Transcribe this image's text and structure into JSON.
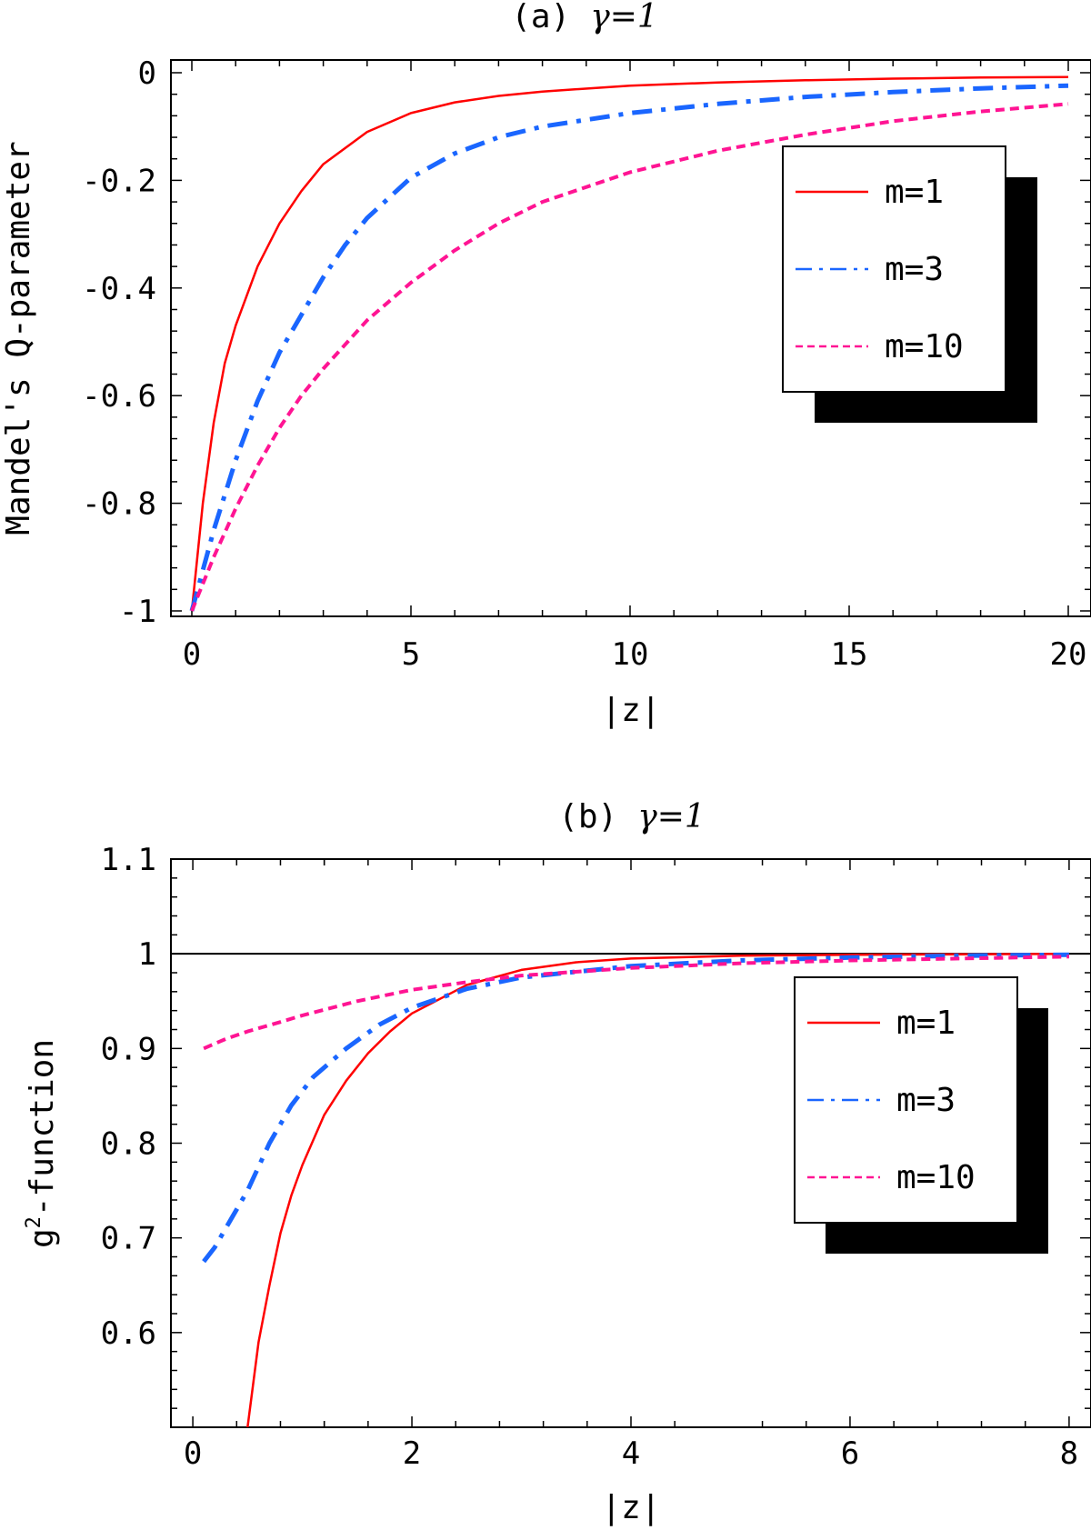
{
  "chart_data": [
    {
      "type": "line",
      "title": "(a)  γ=1",
      "title_prefix": "(a)",
      "title_param": "γ=1",
      "xlabel": "|z|",
      "ylabel": "Mandel's Q-parameter",
      "xlim": [
        0,
        20
      ],
      "ylim": [
        -1,
        0
      ],
      "xticks": [
        0,
        5,
        10,
        15,
        20
      ],
      "xtick_labels": [
        "0",
        "5",
        "10",
        "15",
        "20"
      ],
      "yticks": [
        0,
        -0.2,
        -0.4,
        -0.6,
        -0.8,
        -1
      ],
      "ytick_labels": [
        "0",
        "-0.2",
        "-0.4",
        "-0.6",
        "-0.8",
        "-1"
      ],
      "legend_position": "upper-right",
      "series": [
        {
          "name": "m=1",
          "color": "#ff0000",
          "style": "solid",
          "x": [
            0,
            0.25,
            0.5,
            0.75,
            1,
            1.5,
            2,
            2.5,
            3,
            4,
            5,
            6,
            7,
            8,
            10,
            12,
            14,
            16,
            18,
            20
          ],
          "y": [
            -1,
            -0.8,
            -0.65,
            -0.54,
            -0.47,
            -0.36,
            -0.28,
            -0.22,
            -0.17,
            -0.11,
            -0.075,
            -0.055,
            -0.043,
            -0.035,
            -0.024,
            -0.018,
            -0.014,
            -0.011,
            -0.009,
            -0.008
          ]
        },
        {
          "name": "m=3",
          "color": "#1a66ff",
          "style": "dashdot",
          "x": [
            0,
            0.5,
            1,
            1.5,
            2,
            2.5,
            3,
            3.5,
            4,
            5,
            6,
            7,
            8,
            10,
            12,
            14,
            16,
            18,
            20
          ],
          "y": [
            -1,
            -0.85,
            -0.72,
            -0.61,
            -0.52,
            -0.45,
            -0.38,
            -0.32,
            -0.27,
            -0.195,
            -0.15,
            -0.12,
            -0.1,
            -0.075,
            -0.058,
            -0.045,
            -0.036,
            -0.029,
            -0.024
          ]
        },
        {
          "name": "m=10",
          "color": "#ff1493",
          "style": "dashed",
          "x": [
            0,
            0.5,
            1,
            1.5,
            2,
            2.5,
            3,
            4,
            5,
            6,
            7,
            8,
            10,
            12,
            14,
            16,
            18,
            20
          ],
          "y": [
            -1,
            -0.9,
            -0.81,
            -0.73,
            -0.66,
            -0.6,
            -0.55,
            -0.46,
            -0.39,
            -0.33,
            -0.28,
            -0.24,
            -0.185,
            -0.145,
            -0.115,
            -0.09,
            -0.072,
            -0.058
          ]
        }
      ]
    },
    {
      "type": "line",
      "title": "(b)  γ=1",
      "title_prefix": "(b)",
      "title_param": "γ=1",
      "xlabel": "|z|",
      "ylabel": "g²-function",
      "ylabel_base": "g",
      "ylabel_sup": "2",
      "ylabel_rest": "-function",
      "xlim": [
        -0.2,
        8.2
      ],
      "ylim": [
        0.5,
        1.1
      ],
      "xticks": [
        0,
        2,
        4,
        6,
        8
      ],
      "xtick_labels": [
        "0",
        "2",
        "4",
        "6",
        "8"
      ],
      "yticks": [
        1.1,
        1,
        0.9,
        0.8,
        0.7,
        0.6
      ],
      "ytick_labels": [
        "1.1",
        "1",
        "0.9",
        "0.8",
        "0.7",
        "0.6"
      ],
      "reference_line": 1,
      "legend_position": "right",
      "series": [
        {
          "name": "m=1",
          "color": "#ff0000",
          "style": "solid",
          "x": [
            0.5,
            0.6,
            0.7,
            0.8,
            0.9,
            1.0,
            1.2,
            1.4,
            1.6,
            1.8,
            2.0,
            2.5,
            3.0,
            3.5,
            4.0,
            5.0,
            6.0,
            7.0,
            8.0
          ],
          "y": [
            0.5,
            0.59,
            0.65,
            0.705,
            0.745,
            0.777,
            0.83,
            0.866,
            0.895,
            0.918,
            0.937,
            0.967,
            0.983,
            0.991,
            0.995,
            0.998,
            0.999,
            0.9995,
            1.0
          ]
        },
        {
          "name": "m=3",
          "color": "#1a66ff",
          "style": "dashdot",
          "x": [
            0.1,
            0.2,
            0.3,
            0.5,
            0.7,
            0.9,
            1.1,
            1.4,
            1.7,
            2.0,
            2.5,
            3.0,
            4.0,
            5.0,
            6.0,
            7.0,
            8.0
          ],
          "y": [
            0.675,
            0.69,
            0.71,
            0.75,
            0.8,
            0.84,
            0.87,
            0.9,
            0.925,
            0.943,
            0.963,
            0.975,
            0.987,
            0.993,
            0.996,
            0.998,
            0.999
          ]
        },
        {
          "name": "m=10",
          "color": "#ff1493",
          "style": "dashed",
          "x": [
            0.1,
            0.3,
            0.5,
            0.8,
            1.0,
            1.5,
            2.0,
            2.5,
            3.0,
            4.0,
            5.0,
            6.0,
            7.0,
            8.0
          ],
          "y": [
            0.9,
            0.91,
            0.918,
            0.928,
            0.935,
            0.95,
            0.962,
            0.97,
            0.977,
            0.985,
            0.99,
            0.993,
            0.995,
            0.997
          ]
        }
      ]
    }
  ]
}
